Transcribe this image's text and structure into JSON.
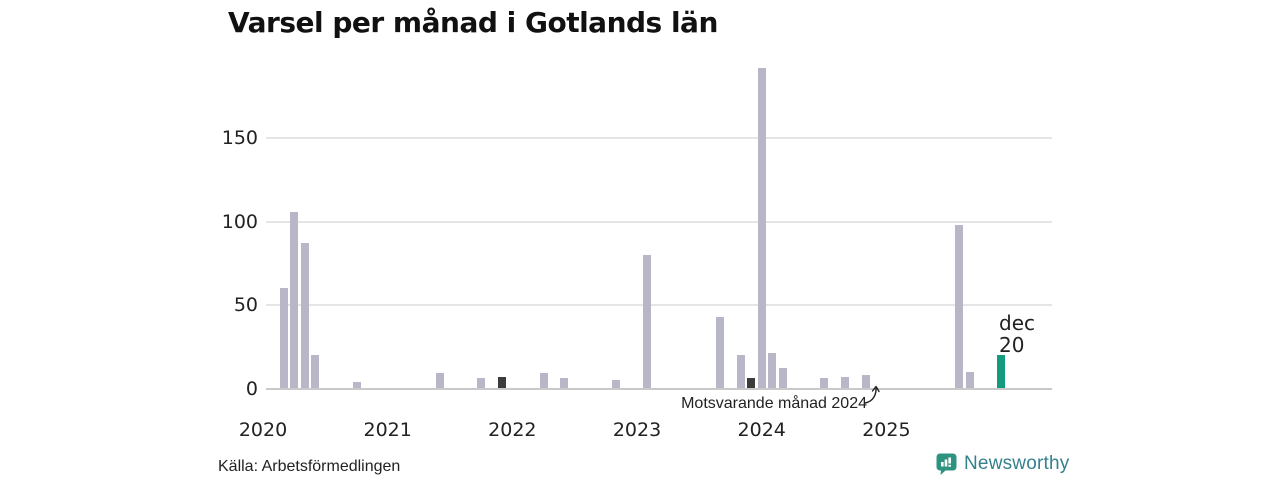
{
  "title": "Varsel per månad i Gotlands län",
  "source": "Källa: Arbetsförmedlingen",
  "annotation": {
    "text": "Motsvarande månad 2024",
    "points_to_month": "2024-12"
  },
  "current_month_label": {
    "line1": "dec",
    "line2": "20"
  },
  "logo": {
    "name": "Newsworthy",
    "icon": "newsworthy-speech-bubble-chart-icon",
    "icon_color": "#2d9380",
    "text_color": "#36808d"
  },
  "colors": {
    "normal": "#b9b6c7",
    "dark": "#3b3b3b",
    "current": "#149a7c",
    "gridline": "#e5e5e8",
    "baseline": "#c9c9cc",
    "text": "#222222"
  },
  "chart_data": {
    "type": "bar",
    "title": "Varsel per månad i Gotlands län",
    "xlabel": "",
    "ylabel": "",
    "x_axis": {
      "tick_labels": [
        "2020",
        "2021",
        "2022",
        "2023",
        "2024",
        "2025"
      ]
    },
    "y_axis": {
      "ticks": [
        0,
        50,
        100,
        150
      ],
      "range": [
        0,
        195
      ],
      "grid": true
    },
    "legend": "none",
    "points": [
      {
        "month": "2020-03",
        "value": 60,
        "kind": "normal"
      },
      {
        "month": "2020-04",
        "value": 106,
        "kind": "normal"
      },
      {
        "month": "2020-05",
        "value": 87,
        "kind": "normal"
      },
      {
        "month": "2020-06",
        "value": 20,
        "kind": "normal"
      },
      {
        "month": "2020-10",
        "value": 4,
        "kind": "normal"
      },
      {
        "month": "2021-06",
        "value": 9,
        "kind": "normal"
      },
      {
        "month": "2021-10",
        "value": 6,
        "kind": "normal"
      },
      {
        "month": "2021-12",
        "value": 7,
        "kind": "dark"
      },
      {
        "month": "2022-04",
        "value": 9,
        "kind": "normal"
      },
      {
        "month": "2022-06",
        "value": 6,
        "kind": "normal"
      },
      {
        "month": "2022-11",
        "value": 5,
        "kind": "normal"
      },
      {
        "month": "2023-02",
        "value": 80,
        "kind": "normal"
      },
      {
        "month": "2023-09",
        "value": 43,
        "kind": "normal"
      },
      {
        "month": "2023-11",
        "value": 20,
        "kind": "normal"
      },
      {
        "month": "2023-12",
        "value": 6,
        "kind": "dark"
      },
      {
        "month": "2024-01",
        "value": 192,
        "kind": "normal"
      },
      {
        "month": "2024-02",
        "value": 21,
        "kind": "normal"
      },
      {
        "month": "2024-03",
        "value": 12,
        "kind": "normal"
      },
      {
        "month": "2024-07",
        "value": 6,
        "kind": "normal"
      },
      {
        "month": "2024-09",
        "value": 7,
        "kind": "normal"
      },
      {
        "month": "2024-11",
        "value": 8,
        "kind": "normal"
      },
      {
        "month": "2024-12",
        "value": 0,
        "kind": "dark"
      },
      {
        "month": "2025-08",
        "value": 98,
        "kind": "normal"
      },
      {
        "month": "2025-09",
        "value": 10,
        "kind": "normal"
      },
      {
        "month": "2025-12",
        "value": 20,
        "kind": "current"
      }
    ]
  }
}
